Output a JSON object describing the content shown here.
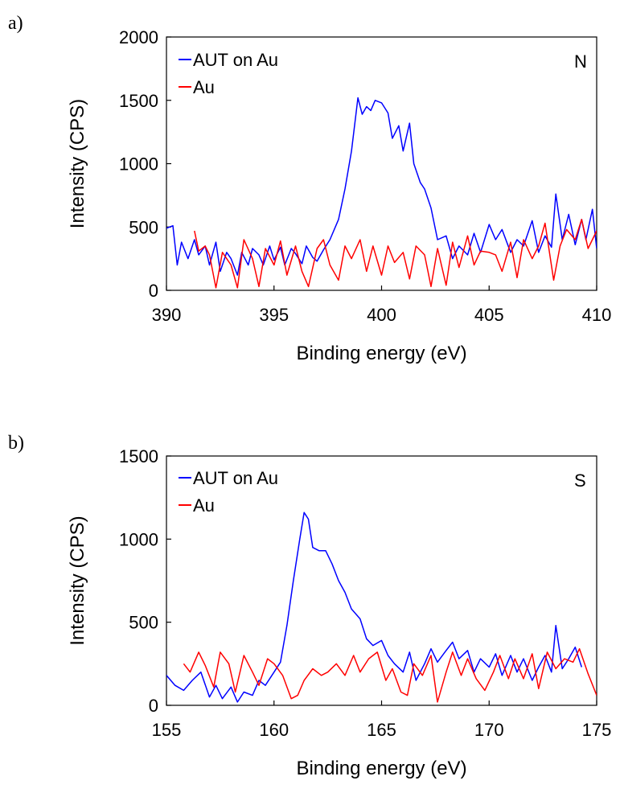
{
  "chart_data": [
    {
      "type": "line",
      "panel_label": "a)",
      "xlabel": "Binding energy (eV)",
      "ylabel": "Intensity (CPS)",
      "xlim": [
        390,
        410
      ],
      "ylim": [
        0,
        2000
      ],
      "xticks": [
        "390",
        "395",
        "400",
        "405",
        "410"
      ],
      "yticks": [
        "0",
        "500",
        "1000",
        "1500",
        "2000"
      ],
      "annotation": "N",
      "legend_position": "top-left",
      "grid": false,
      "series": [
        {
          "name": "AUT on Au",
          "color": "#0000ff",
          "x": [
            390.0,
            390.3,
            390.5,
            390.7,
            391.0,
            391.3,
            391.5,
            391.8,
            392.0,
            392.3,
            392.5,
            392.8,
            393.0,
            393.3,
            393.5,
            393.8,
            394.0,
            394.3,
            394.5,
            394.8,
            395.0,
            395.3,
            395.5,
            395.8,
            396.0,
            396.3,
            396.5,
            396.8,
            397.0,
            397.3,
            397.6,
            398.0,
            398.3,
            398.6,
            398.9,
            399.1,
            399.3,
            399.5,
            399.7,
            400.0,
            400.3,
            400.5,
            400.8,
            401.0,
            401.3,
            401.5,
            401.8,
            402.0,
            402.3,
            402.6,
            403.0,
            403.3,
            403.6,
            404.0,
            404.3,
            404.6,
            405.0,
            405.3,
            405.6,
            406.0,
            406.3,
            406.6,
            407.0,
            407.3,
            407.6,
            407.9,
            408.1,
            408.4,
            408.7,
            409.0,
            409.3,
            409.5,
            409.8,
            410.0
          ],
          "y": [
            490,
            510,
            200,
            380,
            250,
            400,
            280,
            350,
            200,
            380,
            150,
            300,
            250,
            120,
            300,
            200,
            330,
            280,
            200,
            350,
            240,
            340,
            200,
            330,
            290,
            210,
            350,
            260,
            230,
            320,
            400,
            560,
            800,
            1100,
            1520,
            1390,
            1450,
            1420,
            1500,
            1480,
            1400,
            1200,
            1300,
            1100,
            1320,
            1000,
            850,
            800,
            650,
            400,
            430,
            250,
            350,
            280,
            450,
            300,
            520,
            400,
            480,
            300,
            400,
            350,
            550,
            300,
            430,
            340,
            760,
            400,
            600,
            360,
            560,
            400,
            640,
            330
          ]
        },
        {
          "name": "Au",
          "color": "#ff0000",
          "x": [
            391.3,
            391.5,
            391.8,
            392.0,
            392.3,
            392.6,
            393.0,
            393.3,
            393.6,
            394.0,
            394.3,
            394.6,
            395.0,
            395.3,
            395.6,
            396.0,
            396.3,
            396.6,
            397.0,
            397.3,
            397.6,
            398.0,
            398.3,
            398.6,
            399.0,
            399.3,
            399.6,
            400.0,
            400.3,
            400.6,
            401.0,
            401.3,
            401.6,
            402.0,
            402.3,
            402.6,
            403.0,
            403.3,
            403.6,
            404.0,
            404.3,
            404.6,
            405.0,
            405.3,
            405.6,
            406.0,
            406.3,
            406.6,
            407.0,
            407.3,
            407.6,
            408.0,
            408.3,
            408.6,
            409.0,
            409.3,
            409.6,
            410.0
          ],
          "y": [
            470,
            310,
            350,
            280,
            20,
            300,
            200,
            20,
            400,
            250,
            30,
            330,
            200,
            390,
            120,
            350,
            150,
            30,
            330,
            400,
            200,
            80,
            350,
            250,
            400,
            150,
            350,
            120,
            350,
            220,
            300,
            90,
            350,
            280,
            30,
            330,
            40,
            380,
            180,
            430,
            200,
            310,
            300,
            280,
            150,
            380,
            100,
            400,
            250,
            350,
            530,
            80,
            350,
            480,
            400,
            560,
            330,
            470
          ]
        }
      ]
    },
    {
      "type": "line",
      "panel_label": "b)",
      "xlabel": "Binding energy (eV)",
      "ylabel": "Intensity (CPS)",
      "xlim": [
        155,
        175
      ],
      "ylim": [
        0,
        1500
      ],
      "xticks": [
        "155",
        "160",
        "165",
        "170",
        "175"
      ],
      "yticks": [
        "0",
        "500",
        "1000",
        "1500"
      ],
      "annotation": "S",
      "legend_position": "top-left",
      "grid": false,
      "series": [
        {
          "name": "AUT on Au",
          "color": "#0000ff",
          "x": [
            155.0,
            155.4,
            155.8,
            156.2,
            156.6,
            157.0,
            157.3,
            157.6,
            158.0,
            158.3,
            158.6,
            159.0,
            159.3,
            159.6,
            160.0,
            160.3,
            160.6,
            160.9,
            161.2,
            161.4,
            161.6,
            161.8,
            162.1,
            162.4,
            162.7,
            163.0,
            163.3,
            163.6,
            164.0,
            164.3,
            164.6,
            165.0,
            165.3,
            165.6,
            166.0,
            166.3,
            166.6,
            167.0,
            167.3,
            167.6,
            168.0,
            168.3,
            168.6,
            169.0,
            169.3,
            169.6,
            170.0,
            170.3,
            170.6,
            171.0,
            171.3,
            171.6,
            172.0,
            172.3,
            172.6,
            172.9,
            173.1,
            173.4,
            173.7,
            174.0,
            174.3
          ],
          "y": [
            180,
            120,
            90,
            150,
            200,
            50,
            120,
            40,
            110,
            20,
            80,
            60,
            150,
            120,
            200,
            260,
            480,
            750,
            1000,
            1160,
            1120,
            950,
            930,
            930,
            850,
            750,
            680,
            580,
            520,
            400,
            360,
            390,
            300,
            250,
            200,
            320,
            150,
            250,
            340,
            260,
            330,
            380,
            280,
            330,
            200,
            280,
            230,
            310,
            180,
            300,
            200,
            280,
            150,
            230,
            300,
            200,
            480,
            220,
            280,
            350,
            230
          ]
        },
        {
          "name": "Au",
          "color": "#ff0000",
          "x": [
            155.8,
            156.1,
            156.5,
            156.8,
            157.2,
            157.5,
            157.9,
            158.2,
            158.6,
            159.0,
            159.3,
            159.7,
            160.0,
            160.4,
            160.8,
            161.1,
            161.4,
            161.8,
            162.2,
            162.5,
            162.9,
            163.3,
            163.7,
            164.0,
            164.4,
            164.8,
            165.2,
            165.5,
            165.9,
            166.2,
            166.5,
            166.9,
            167.3,
            167.6,
            168.0,
            168.3,
            168.7,
            169.0,
            169.4,
            169.8,
            170.2,
            170.5,
            170.9,
            171.2,
            171.6,
            172.0,
            172.3,
            172.7,
            173.1,
            173.5,
            173.9,
            174.2,
            174.6,
            175.0
          ],
          "y": [
            250,
            200,
            320,
            240,
            110,
            320,
            250,
            80,
            300,
            200,
            120,
            280,
            250,
            180,
            40,
            60,
            150,
            220,
            180,
            200,
            250,
            180,
            300,
            200,
            280,
            320,
            150,
            220,
            80,
            60,
            250,
            180,
            300,
            20,
            200,
            320,
            180,
            280,
            160,
            90,
            200,
            300,
            160,
            280,
            160,
            310,
            100,
            320,
            220,
            280,
            260,
            340,
            190,
            60
          ]
        }
      ]
    }
  ]
}
